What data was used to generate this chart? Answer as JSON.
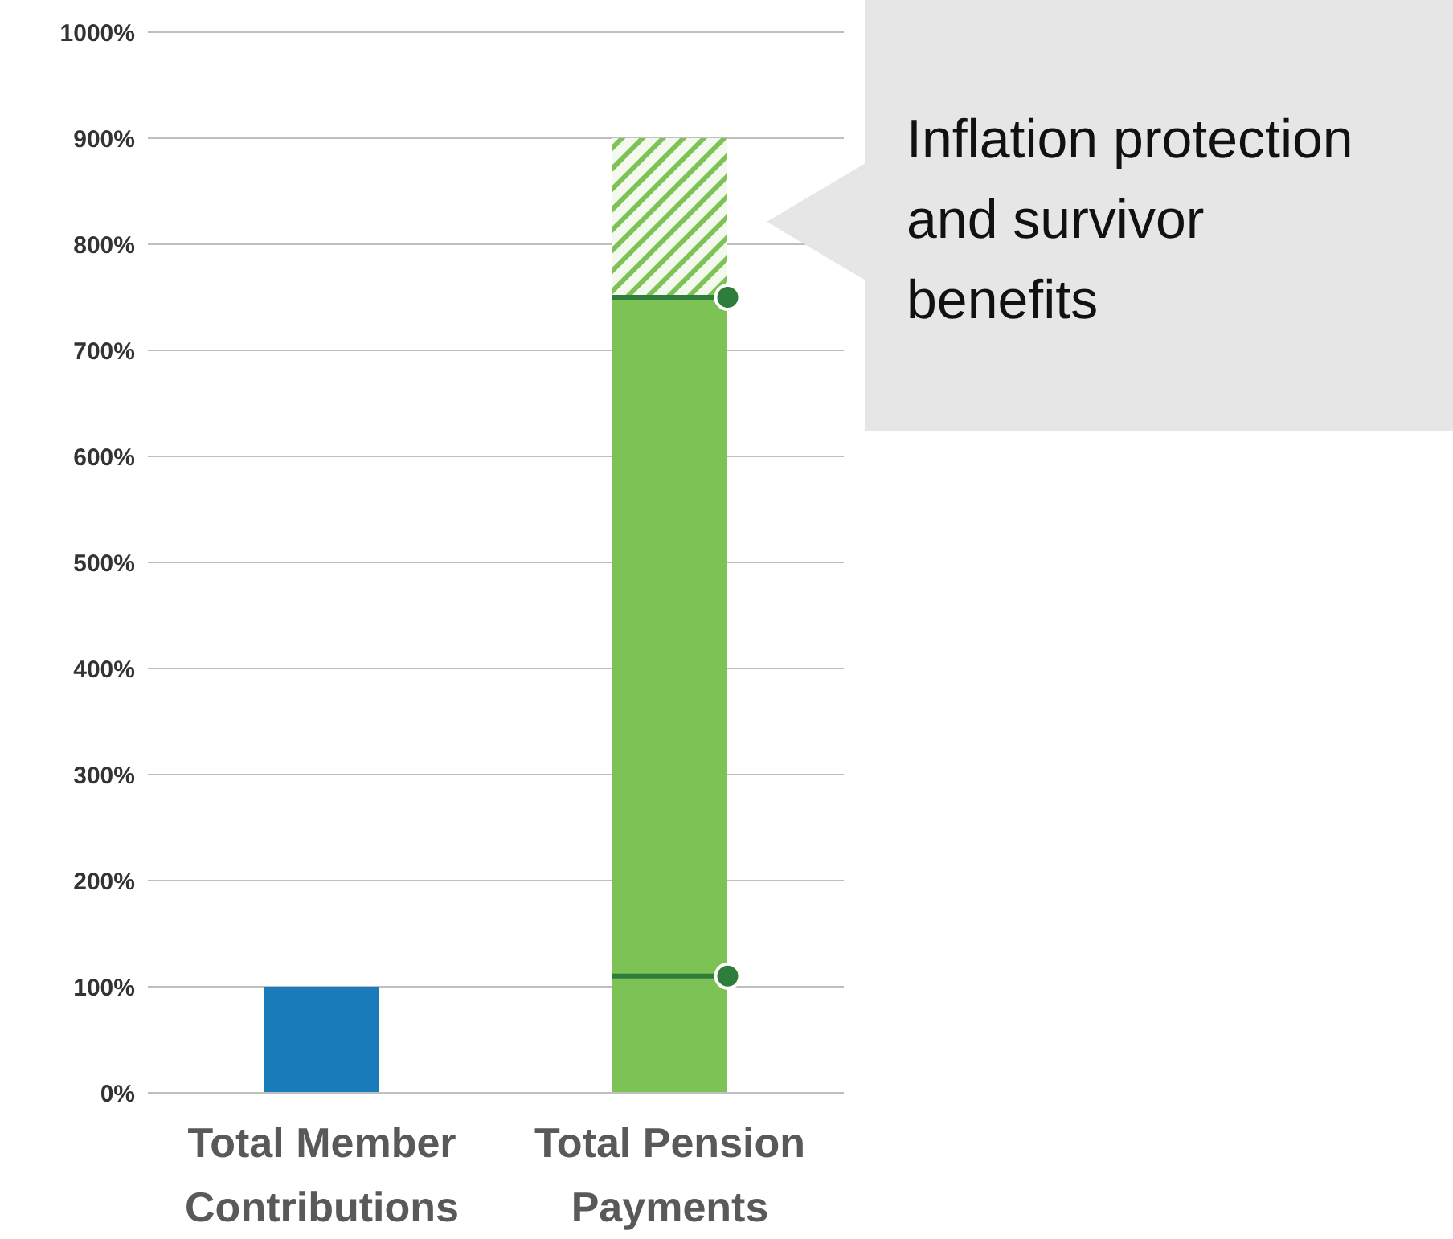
{
  "chart_data": {
    "type": "bar",
    "stacked": true,
    "categories": [
      "Total Member Contributions",
      "Total Pension Payments"
    ],
    "series": [
      {
        "colors": [
          "#1a7bbb",
          "#7dc254"
        ],
        "values": [
          100,
          750
        ]
      },
      {
        "color": "#7dc254",
        "values": [
          null,
          150
        ]
      },
      {
        "type": "scatter",
        "color": "#2e7d3a",
        "x": [
          "Total Pension Payments",
          "Total Pension Payments"
        ],
        "values": [
          110,
          750
        ]
      }
    ],
    "ylim": [
      0,
      1000
    ],
    "yticks": [
      {
        "value": 0,
        "label": "0%"
      },
      {
        "value": 100,
        "label": "100%"
      },
      {
        "value": 200,
        "label": "200%"
      },
      {
        "value": 300,
        "label": "300%"
      },
      {
        "value": 400,
        "label": "400%"
      },
      {
        "value": 500,
        "label": "500%"
      },
      {
        "value": 600,
        "label": "600%"
      },
      {
        "value": 700,
        "label": "700%"
      },
      {
        "value": 800,
        "label": "800%"
      },
      {
        "value": 900,
        "label": "900%"
      },
      {
        "value": 1000,
        "label": "1000%"
      }
    ],
    "grid": "y",
    "marker": "circle",
    "legend": false,
    "annotations": [
      "Inflation protection and survivor benefits"
    ]
  }
}
